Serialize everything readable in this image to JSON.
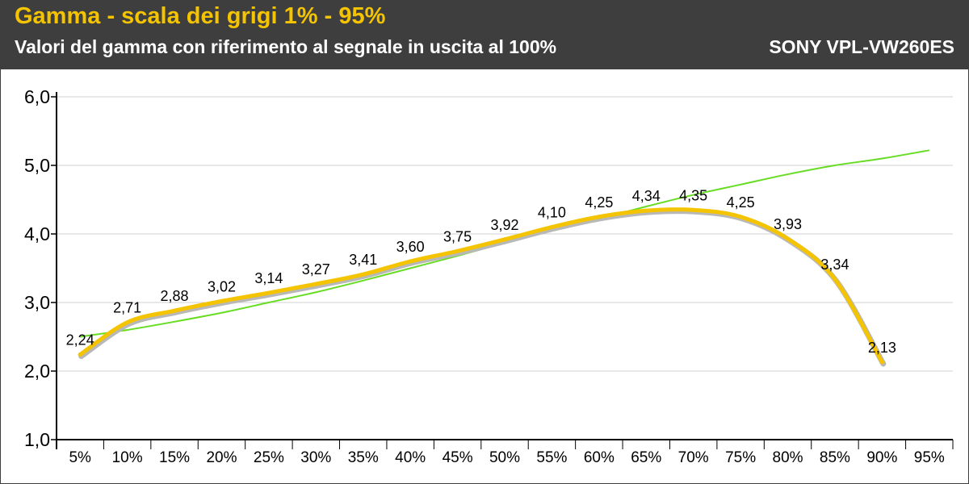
{
  "header": {
    "title": "Gamma - scala dei grigi 1% - 95%",
    "subtitle": "Valori del gamma con riferimento al segnale in uscita al 100%",
    "model": "SONY VPL-VW260ES"
  },
  "colors": {
    "header_bg": "#3e3e3e",
    "title": "#f5c400",
    "measured_line": "#f5c400",
    "reference_line": "#66dd22",
    "grid": "#d0d0d0"
  },
  "chart_data": {
    "type": "line",
    "title": "Gamma - scala dei grigi 1% - 95%",
    "subtitle": "Valori del gamma con riferimento al segnale in uscita al 100%",
    "categories": [
      "5%",
      "10%",
      "15%",
      "20%",
      "25%",
      "30%",
      "35%",
      "40%",
      "45%",
      "50%",
      "55%",
      "60%",
      "65%",
      "70%",
      "75%",
      "80%",
      "85%",
      "90%",
      "95%"
    ],
    "y_ticks": [
      "1,0",
      "2,0",
      "3,0",
      "4,0",
      "5,0",
      "6,0"
    ],
    "ylim": [
      1.0,
      6.0
    ],
    "grid": true,
    "series": [
      {
        "values": [
          2.24,
          2.71,
          2.88,
          3.02,
          3.14,
          3.27,
          3.41,
          3.6,
          3.75,
          3.92,
          4.1,
          4.25,
          4.34,
          4.35,
          4.25,
          3.93,
          3.34,
          2.13,
          null
        ],
        "labels": [
          "2,24",
          "2,71",
          "2,88",
          "3,02",
          "3,14",
          "3,27",
          "3,41",
          "3,60",
          "3,75",
          "3,92",
          "4,10",
          "4,25",
          "4,34",
          "4,35",
          "4,25",
          "3,93",
          "3,34",
          "2,13",
          ""
        ],
        "color": "#f5c400"
      },
      {
        "values": [
          2.5,
          2.6,
          2.72,
          2.85,
          3.0,
          3.15,
          3.32,
          3.5,
          3.68,
          3.87,
          4.05,
          4.22,
          4.4,
          4.57,
          4.72,
          4.87,
          5.0,
          5.1,
          5.22
        ],
        "color": "#66dd22"
      }
    ]
  }
}
